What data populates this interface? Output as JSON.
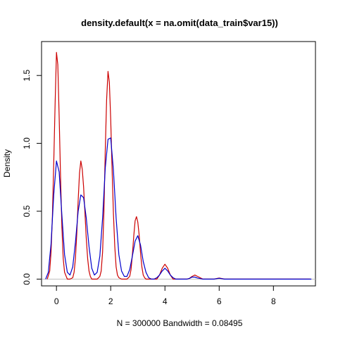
{
  "chart_data": {
    "type": "line",
    "title": "density.default(x = na.omit(data_train$var15))",
    "xlabel": "N = 300000   Bandwidth = 0.08495",
    "ylabel": "Density",
    "xlim": [
      -0.55,
      9.55
    ],
    "ylim": [
      -0.05,
      1.75
    ],
    "x_ticks": [
      0,
      2,
      4,
      6,
      8
    ],
    "x_tick_labels": [
      "0",
      "2",
      "4",
      "6",
      "8"
    ],
    "y_ticks": [
      0.0,
      0.5,
      1.0,
      1.5
    ],
    "y_tick_labels": [
      "0.0",
      "0.5",
      "1.0",
      "1.5"
    ],
    "grid": false,
    "baseline": 0,
    "series": [
      {
        "color": "#cc0000",
        "x": [
          -0.34,
          -0.25,
          -0.2,
          -0.15,
          -0.1,
          -0.05,
          0,
          0.05,
          0.1,
          0.15,
          0.2,
          0.25,
          0.3,
          0.4,
          0.5,
          0.6,
          0.65,
          0.7,
          0.75,
          0.8,
          0.85,
          0.9,
          0.95,
          1.0,
          1.05,
          1.1,
          1.15,
          1.2,
          1.25,
          1.3,
          1.4,
          1.5,
          1.6,
          1.65,
          1.7,
          1.75,
          1.8,
          1.85,
          1.9,
          1.95,
          2.0,
          2.05,
          2.1,
          2.15,
          2.2,
          2.25,
          2.3,
          2.4,
          2.5,
          2.6,
          2.7,
          2.75,
          2.8,
          2.85,
          2.9,
          2.95,
          3.0,
          3.05,
          3.1,
          3.15,
          3.2,
          3.25,
          3.3,
          3.4,
          3.5,
          3.6,
          3.7,
          3.8,
          3.9,
          4.0,
          4.1,
          4.2,
          4.3,
          4.4,
          4.6,
          4.8,
          4.9,
          5.0,
          5.1,
          5.2,
          5.4,
          5.8,
          5.9,
          6.0,
          6.1,
          6.2,
          6.5,
          7.0,
          8.0,
          9.35
        ],
        "values": [
          0.0,
          0.06,
          0.2,
          0.46,
          0.85,
          1.3,
          1.67,
          1.58,
          1.2,
          0.75,
          0.38,
          0.15,
          0.05,
          0.0,
          0.0,
          0.01,
          0.05,
          0.15,
          0.34,
          0.58,
          0.78,
          0.87,
          0.81,
          0.68,
          0.49,
          0.3,
          0.15,
          0.06,
          0.02,
          0.0,
          0.0,
          0.0,
          0.02,
          0.06,
          0.2,
          0.5,
          0.95,
          1.32,
          1.53,
          1.45,
          1.18,
          0.82,
          0.48,
          0.24,
          0.09,
          0.03,
          0.01,
          0.0,
          0.0,
          0.0,
          0.02,
          0.07,
          0.18,
          0.32,
          0.43,
          0.46,
          0.42,
          0.32,
          0.19,
          0.09,
          0.03,
          0.01,
          0.0,
          0.0,
          0.0,
          0.0,
          0.0,
          0.03,
          0.08,
          0.11,
          0.08,
          0.03,
          0.0,
          0.0,
          0.0,
          0.0,
          0.005,
          0.02,
          0.03,
          0.02,
          0.0,
          0.0,
          0.004,
          0.008,
          0.004,
          0.0,
          0.0,
          0.0,
          0.0,
          0.0
        ]
      },
      {
        "color": "#0000cc",
        "x": [
          -0.4,
          -0.3,
          -0.2,
          -0.1,
          0,
          0.1,
          0.2,
          0.3,
          0.4,
          0.5,
          0.6,
          0.7,
          0.8,
          0.9,
          1.0,
          1.1,
          1.2,
          1.3,
          1.4,
          1.5,
          1.6,
          1.7,
          1.8,
          1.9,
          2.0,
          2.1,
          2.2,
          2.3,
          2.4,
          2.5,
          2.6,
          2.7,
          2.8,
          2.9,
          3.0,
          3.1,
          3.2,
          3.3,
          3.4,
          3.5,
          3.6,
          3.7,
          3.8,
          3.9,
          4.0,
          4.1,
          4.2,
          4.3,
          4.4,
          4.6,
          4.8,
          4.9,
          5.0,
          5.1,
          5.2,
          5.4,
          5.8,
          5.9,
          6.0,
          6.1,
          6.2,
          6.5,
          7.0,
          8.0,
          9.4
        ],
        "values": [
          0.0,
          0.05,
          0.26,
          0.62,
          0.87,
          0.79,
          0.47,
          0.18,
          0.05,
          0.03,
          0.09,
          0.27,
          0.5,
          0.62,
          0.6,
          0.45,
          0.24,
          0.08,
          0.03,
          0.05,
          0.17,
          0.45,
          0.82,
          1.03,
          1.04,
          0.8,
          0.45,
          0.18,
          0.06,
          0.02,
          0.02,
          0.07,
          0.17,
          0.28,
          0.32,
          0.25,
          0.13,
          0.05,
          0.01,
          0.0,
          0.0,
          0.01,
          0.03,
          0.06,
          0.08,
          0.06,
          0.03,
          0.01,
          0.0,
          0.0,
          0.0,
          0.005,
          0.015,
          0.015,
          0.008,
          0.0,
          0.0,
          0.003,
          0.006,
          0.003,
          0.0,
          0.0,
          0.0,
          0.0,
          0.0
        ]
      }
    ]
  }
}
